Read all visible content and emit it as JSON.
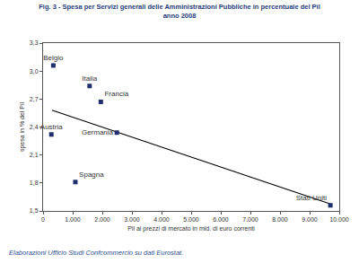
{
  "chart_data": {
    "type": "scatter",
    "title": "Fig. 3 - Spesa per Servizi generali delle Amministrazioni Pubbliche in percentuale del Pil",
    "subtitle": "anno 2008",
    "x_label": "Pil ai prezzi di mercato in mld. di euro correnti",
    "y_label": "spesa in % del Pil",
    "source": "Elaborazioni Ufficio Studi Confcommercio su dati Eurostat.",
    "point_labels": [
      "Belgio",
      "Italia",
      "Francia",
      "Germania",
      "Austria",
      "Spagna",
      "Stati Uniti"
    ],
    "x": [
      345,
      1570,
      1950,
      2490,
      280,
      1090,
      9700
    ],
    "values": [
      3.06,
      2.84,
      2.67,
      2.34,
      2.32,
      1.81,
      1.56
    ],
    "color": "#1f2f6b",
    "marker": "square",
    "trend_line": {
      "x": [
        300,
        9750
      ],
      "values": [
        2.58,
        1.57
      ],
      "color": "#000000",
      "line_style": "solid"
    },
    "xlim": [
      0,
      10000
    ],
    "xticks": [
      0,
      {
        "value": 1000,
        "label": "1.000"
      },
      {
        "value": 2000,
        "label": "2.000"
      },
      {
        "value": 3000,
        "label": "3.000"
      },
      {
        "value": 4000,
        "label": "4.000"
      },
      {
        "value": 5000,
        "label": "5.000"
      },
      {
        "value": 6000,
        "label": "6.000"
      },
      {
        "value": 7000,
        "label": "7.000"
      },
      {
        "value": 8000,
        "label": "8.000"
      },
      {
        "value": 9000,
        "label": "9.000"
      },
      {
        "value": 10000,
        "label": "10.000"
      }
    ],
    "ylim": [
      1.5,
      3.3
    ],
    "yticks": [
      {
        "value": 1.5,
        "label": "1,5"
      },
      {
        "value": 1.8,
        "label": "1,8"
      },
      {
        "value": 2.1,
        "label": "2,1"
      },
      {
        "value": 2.4,
        "label": "2,4"
      },
      {
        "value": 2.7,
        "label": "2,7"
      },
      {
        "value": 3.0,
        "label": "3,0"
      },
      {
        "value": 3.3,
        "label": "3,3"
      }
    ],
    "grid": false
  }
}
